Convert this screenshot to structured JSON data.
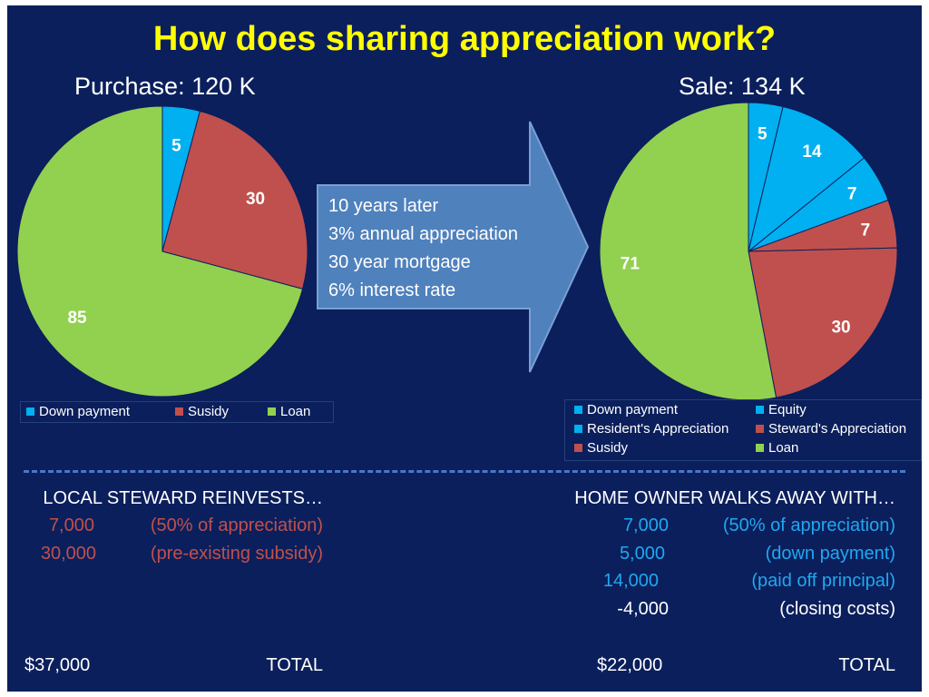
{
  "title": "How does sharing appreciation work?",
  "colors": {
    "background": "#0b1f5c",
    "title": "#ffff00",
    "blue": "#00b0f0",
    "red": "#c0504d",
    "green": "#92d050",
    "accent_blue_text": "#1fa8f0",
    "accent_red_text": "#c0504d"
  },
  "arrow": {
    "lines": [
      "10 years later",
      "3% annual appreciation",
      "30 year mortgage",
      "6% interest rate"
    ]
  },
  "chart_data": [
    {
      "type": "pie",
      "title": "Purchase: 120 K",
      "categories": [
        "Down payment",
        "Susidy",
        "Loan"
      ],
      "values": [
        5,
        30,
        85
      ],
      "colors": [
        "#00b0f0",
        "#c0504d",
        "#92d050"
      ],
      "legend": [
        "Down payment",
        "Susidy",
        "Loan"
      ],
      "legend_position": "bottom"
    },
    {
      "type": "pie",
      "title": "Sale: 134 K",
      "categories": [
        "Down payment",
        "Equity",
        "Resident's Appreciation",
        "Steward's Appreciation",
        "Susidy",
        "Loan"
      ],
      "values": [
        5,
        14,
        7,
        7,
        30,
        71
      ],
      "colors": [
        "#00b0f0",
        "#00b0f0",
        "#00b0f0",
        "#c0504d",
        "#c0504d",
        "#92d050"
      ],
      "legend": [
        "Down payment",
        "Equity",
        "Resident's Appreciation",
        "Steward's Appreciation",
        "Susidy",
        "Loan"
      ],
      "legend_position": "bottom"
    }
  ],
  "steward": {
    "heading": "LOCAL STEWARD REINVESTS…",
    "rows": [
      {
        "amount": "7,000",
        "note": "(50% of appreciation)"
      },
      {
        "amount": "30,000",
        "note": "(pre-existing subsidy)"
      }
    ],
    "total_amount": "$37,000",
    "total_label": "TOTAL"
  },
  "owner": {
    "heading": "HOME OWNER WALKS AWAY WITH…",
    "rows": [
      {
        "amount": "7,000",
        "note": "(50% of appreciation)"
      },
      {
        "amount": "5,000",
        "note": "(down payment)"
      },
      {
        "amount": "14,000",
        "note": "(paid off principal)"
      },
      {
        "amount": "-4,000",
        "note": "(closing costs)"
      }
    ],
    "total_amount": "$22,000",
    "total_label": "TOTAL"
  }
}
